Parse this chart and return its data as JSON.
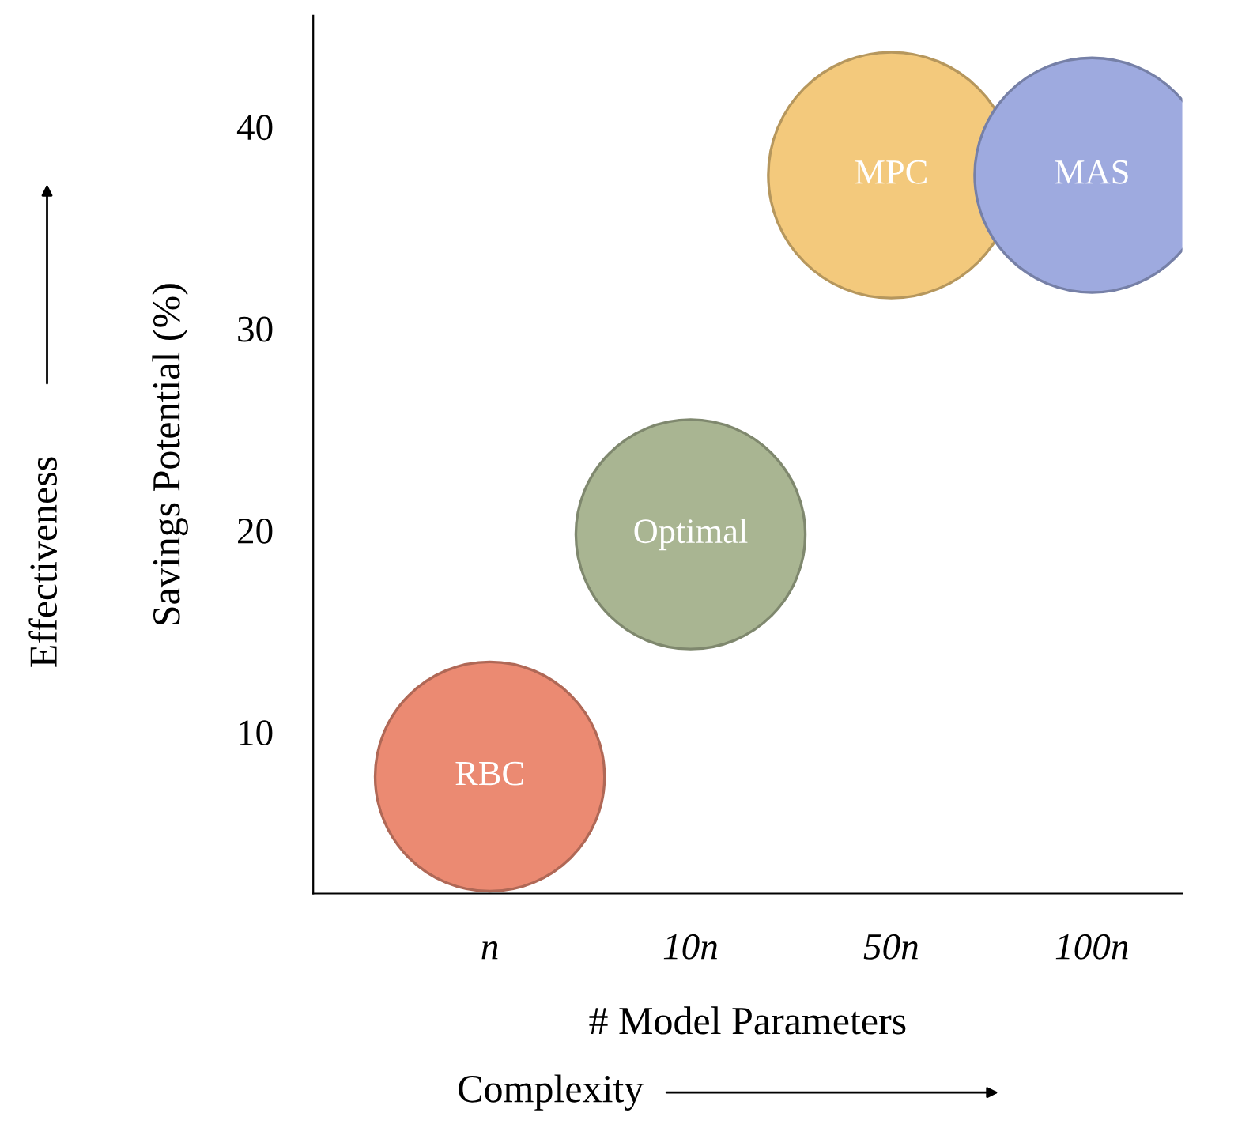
{
  "chart_data": {
    "type": "bubble",
    "ylabel": "Savings Potential (%)",
    "xlabel": "# Model Parameters",
    "categories": [
      "n",
      "10n",
      "50n",
      "100n"
    ],
    "ylim": [
      2,
      45.5
    ],
    "yticks": [
      10,
      20,
      30,
      40
    ],
    "grid": false,
    "legend": false,
    "series": [
      {
        "name": "RBC",
        "color": "#eb8a72",
        "values": [
          7.8,
          null,
          null,
          null
        ],
        "sizes": [
          0.87,
          null,
          null,
          null
        ]
      },
      {
        "name": "Optimal",
        "color": "#a9b592",
        "values": [
          null,
          19.8,
          null,
          null
        ],
        "sizes": [
          null,
          0.87,
          null,
          null
        ]
      },
      {
        "name": "MPC",
        "color": "#f3c97c",
        "values": [
          null,
          null,
          37.6,
          null
        ],
        "sizes": [
          null,
          null,
          1,
          null
        ]
      },
      {
        "name": "MAS",
        "color": "#9eaadf",
        "values": [
          null,
          null,
          null,
          37.6
        ],
        "sizes": [
          null,
          null,
          null,
          0.91
        ]
      }
    ],
    "annotations": [
      "Effectiveness",
      "Complexity"
    ]
  }
}
